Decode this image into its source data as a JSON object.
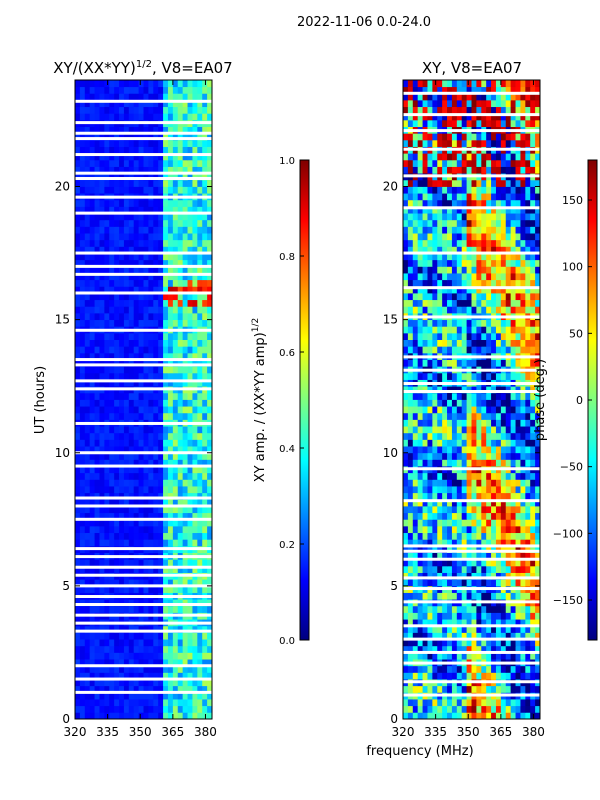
{
  "figure": {
    "suptitle": "2022-11-06 0.0-24.0",
    "common_xlabel": "frequency (MHz)"
  },
  "colormap": {
    "name": "jet",
    "stops": [
      "#00007f",
      "#0000ff",
      "#007fff",
      "#00ffff",
      "#7fff7f",
      "#ffff00",
      "#ff7f00",
      "#ff0000",
      "#7f0000"
    ]
  },
  "chart_data": [
    {
      "type": "heatmap",
      "title": "XY/(XX*YY)",
      "title_exponent": "1/2",
      "title_suffix": ", V8=EA07",
      "xlabel": "",
      "ylabel": "UT (hours)",
      "xlim": [
        320,
        383
      ],
      "ylim": [
        0,
        24
      ],
      "xticks": [
        320,
        335,
        350,
        365,
        380
      ],
      "yticks": [
        0,
        5,
        10,
        15,
        20
      ],
      "gap_rows_hours": [
        1.0,
        1.5,
        2.0,
        3.3,
        3.6,
        3.9,
        4.3,
        4.6,
        5.0,
        5.4,
        5.7,
        6.1,
        6.4,
        7.5,
        8.0,
        8.3,
        9.5,
        10.0,
        11.1,
        12.4,
        12.7,
        13.3,
        13.5,
        14.6,
        16.0,
        16.7,
        17.0,
        17.5,
        19.0,
        19.6,
        20.3,
        20.5,
        21.2,
        21.8,
        22.0,
        22.4,
        23.2
      ],
      "bright_band_MHz": [
        361,
        383
      ],
      "colorbar": {
        "label": "XY amp. / (XX*YY amp)",
        "label_exponent": "1/2",
        "range": [
          0.0,
          1.0
        ],
        "ticks": [
          "0.0",
          "0.2",
          "0.4",
          "0.6",
          "0.8",
          "1.0"
        ]
      }
    },
    {
      "type": "heatmap",
      "title": "XY, V8=EA07",
      "xlabel": "frequency (MHz)",
      "ylabel": "",
      "xlim": [
        320,
        383
      ],
      "ylim": [
        0,
        24
      ],
      "xticks": [
        320,
        335,
        350,
        365,
        380
      ],
      "yticks": [
        0,
        5,
        10,
        15,
        20
      ],
      "gap_rows_hours": [
        0.9,
        1.4,
        2.1,
        2.5,
        3.0,
        3.5,
        4.4,
        4.9,
        5.3,
        6.0,
        6.3,
        6.5,
        8.2,
        9.4,
        12.3,
        12.6,
        13.1,
        13.6,
        15.1,
        16.2,
        17.5,
        19.2,
        20.4,
        21.4,
        22.1,
        22.7,
        23.5
      ],
      "colorbar": {
        "label": "phase (deg.)",
        "range": [
          -180,
          180
        ],
        "ticks": [
          "−150",
          "−100",
          "−50",
          "0",
          "50",
          "100",
          "150"
        ]
      }
    }
  ]
}
